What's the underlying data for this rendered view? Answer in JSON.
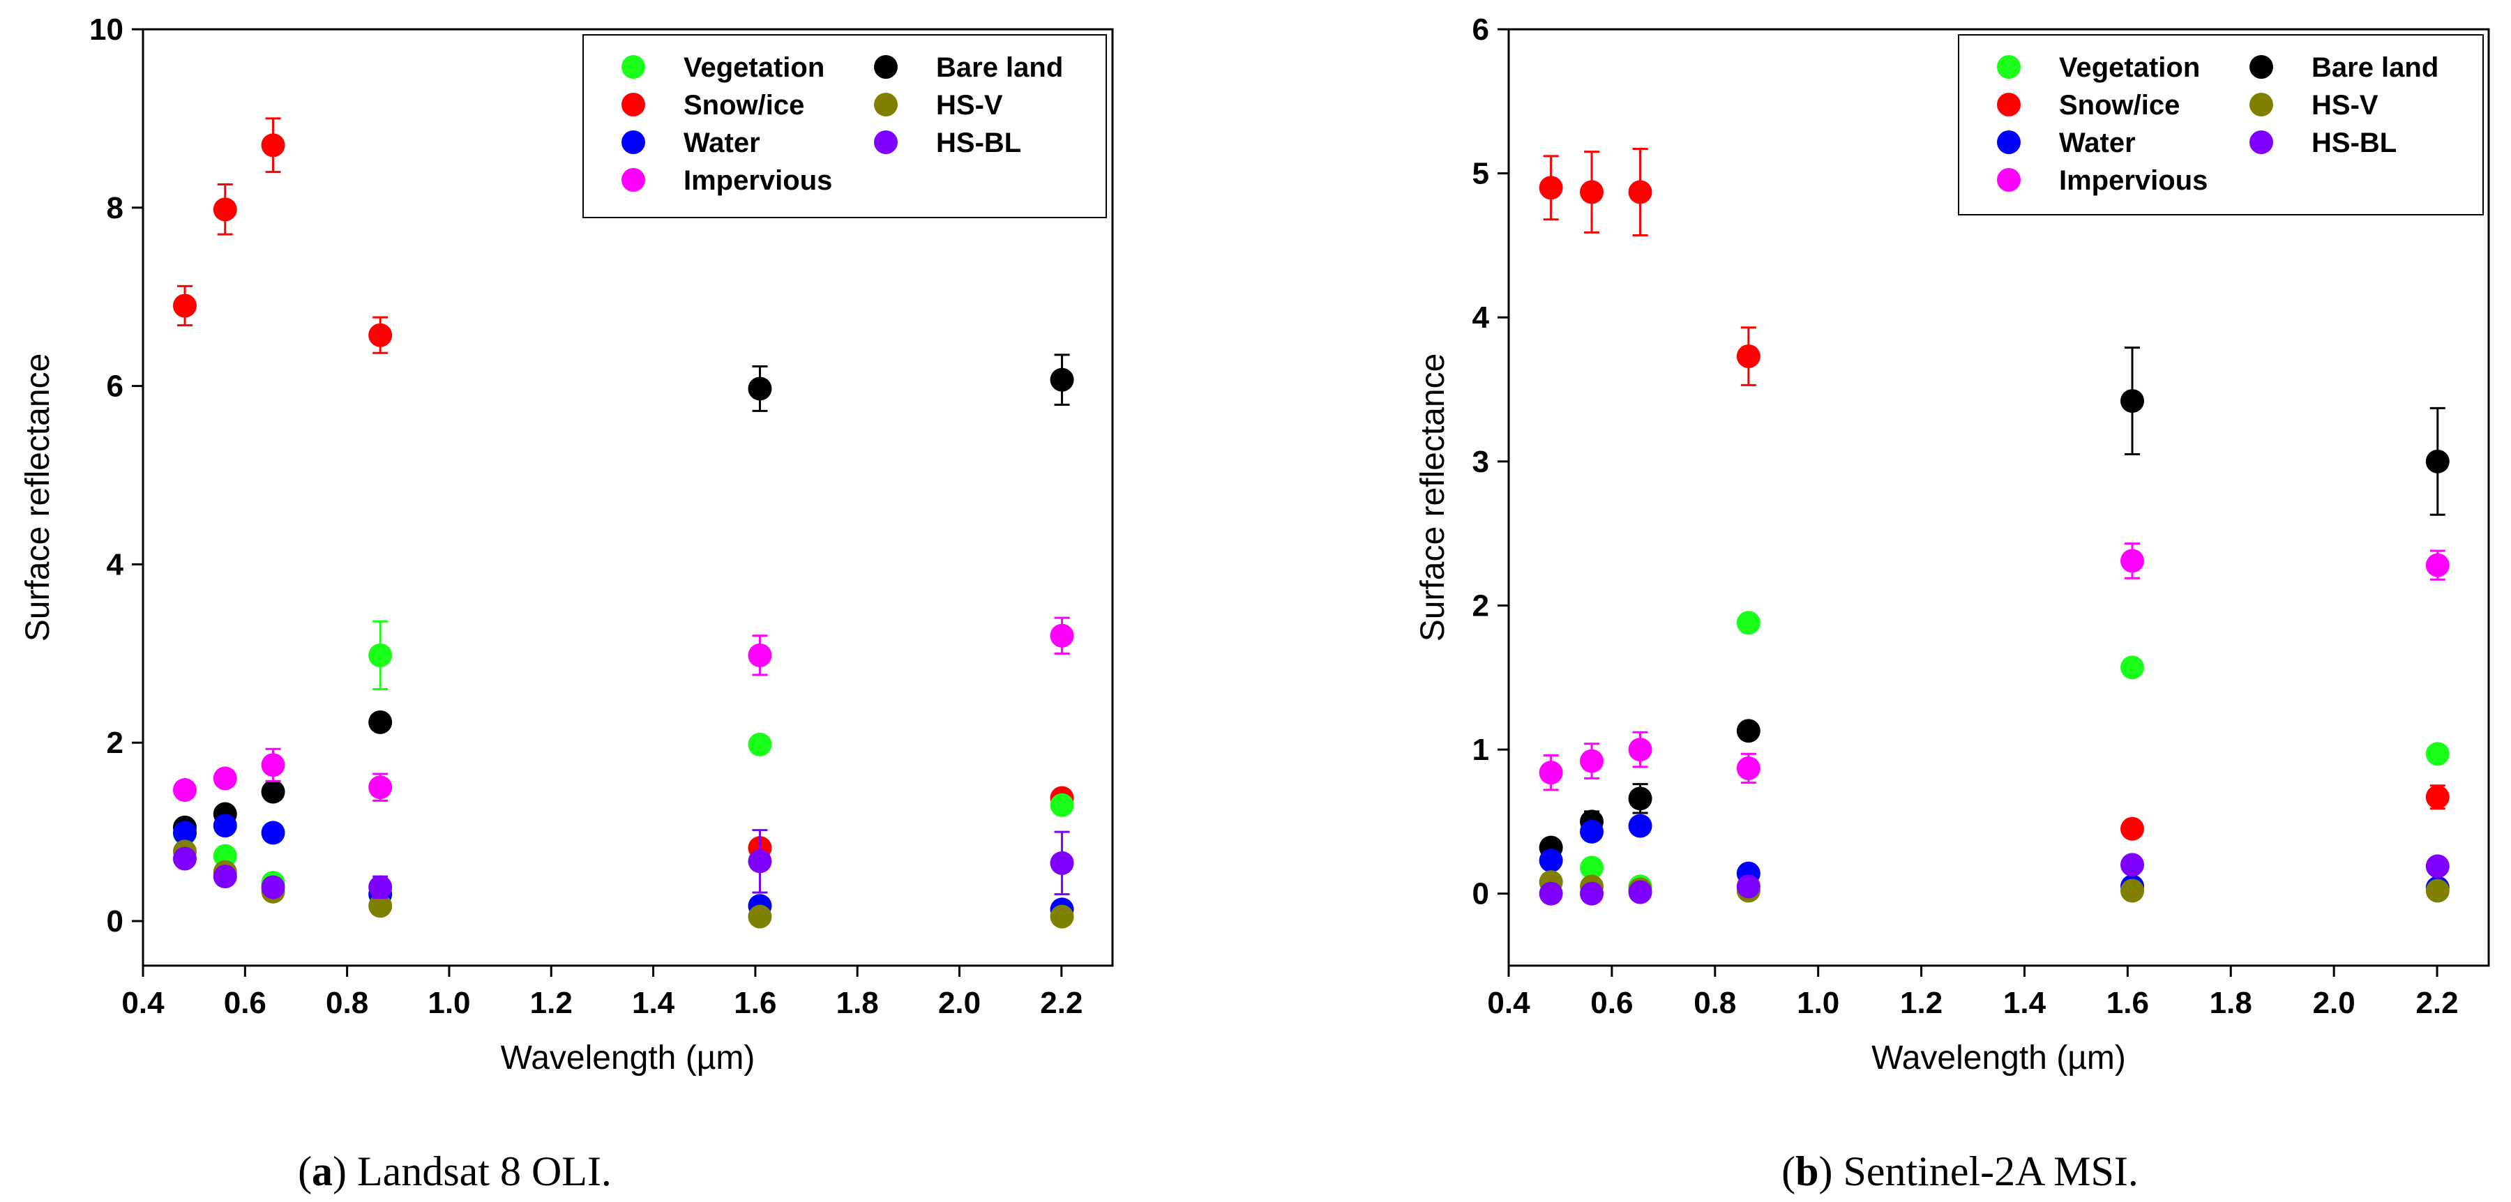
{
  "colors": {
    "Vegetation": "#1aff1a",
    "Snow/ice": "#ff0000",
    "Water": "#0000ff",
    "Impervious": "#ff00ff",
    "Bare land": "#000000",
    "HS-V": "#808000",
    "HS-BL": "#8000ff"
  },
  "chart_data": [
    {
      "type": "scatter",
      "caption_letter": "a",
      "caption_text": " Landsat 8 OLI.",
      "xlabel": "Wavelength (µm)",
      "ylabel": "Surface reflectance",
      "xlim": [
        0.4,
        2.3
      ],
      "ylim": [
        -0.5,
        10
      ],
      "xticks": [
        "0.4",
        "0.6",
        "0.8",
        "1.0",
        "1.2",
        "1.4",
        "1.6",
        "1.8",
        "2.0",
        "2.2"
      ],
      "yticks": [
        "0",
        "2",
        "4",
        "6",
        "8",
        "10"
      ],
      "legend_position": "top-right",
      "legend": [
        {
          "name": "Vegetation",
          "col": 0,
          "row": 0
        },
        {
          "name": "Snow/ice",
          "col": 0,
          "row": 1
        },
        {
          "name": "Water",
          "col": 0,
          "row": 2
        },
        {
          "name": "Impervious",
          "col": 0,
          "row": 3
        },
        {
          "name": "Bare land",
          "col": 1,
          "row": 0
        },
        {
          "name": "HS-V",
          "col": 1,
          "row": 1
        },
        {
          "name": "HS-BL",
          "col": 1,
          "row": 2
        }
      ],
      "x": [
        0.482,
        0.561,
        0.655,
        0.865,
        1.609,
        2.201
      ],
      "series": [
        {
          "name": "Snow/ice",
          "values": [
            6.9,
            7.98,
            8.7,
            6.57,
            0.82,
            1.38
          ],
          "errors": [
            0.22,
            0.28,
            0.3,
            0.2,
            0,
            0
          ]
        },
        {
          "name": "Bare land",
          "values": [
            1.05,
            1.2,
            1.45,
            2.23,
            5.97,
            6.07
          ],
          "errors": [
            0,
            0.08,
            0.05,
            0,
            0.25,
            0.28
          ]
        },
        {
          "name": "Impervious",
          "values": [
            1.47,
            1.6,
            1.75,
            1.5,
            2.98,
            3.2
          ],
          "errors": [
            0,
            0,
            0.18,
            0.15,
            0.22,
            0.2
          ]
        },
        {
          "name": "Vegetation",
          "values": [
            0.98,
            0.73,
            0.43,
            2.98,
            1.98,
            1.3
          ],
          "errors": [
            0,
            0,
            0,
            0.38,
            0,
            0
          ]
        },
        {
          "name": "Water",
          "values": [
            0.99,
            1.07,
            0.99,
            0.3,
            0.17,
            0.13
          ],
          "errors": [
            0,
            0,
            0,
            0,
            0,
            0
          ]
        },
        {
          "name": "HS-V",
          "values": [
            0.78,
            0.55,
            0.33,
            0.17,
            0.05,
            0.05
          ],
          "errors": [
            0,
            0,
            0,
            0,
            0,
            0
          ]
        },
        {
          "name": "HS-BL",
          "values": [
            0.7,
            0.5,
            0.38,
            0.38,
            0.67,
            0.65
          ],
          "errors": [
            0,
            0,
            0,
            0.12,
            0.35,
            0.35
          ]
        }
      ]
    },
    {
      "type": "scatter",
      "caption_letter": "b",
      "caption_text": " Sentinel-2A MSI.",
      "xlabel": "Wavelength (µm)",
      "ylabel": "Surface reflectance",
      "xlim": [
        0.4,
        2.3
      ],
      "ylim": [
        -0.5,
        6
      ],
      "xticks": [
        "0.4",
        "0.6",
        "0.8",
        "1.0",
        "1.2",
        "1.4",
        "1.6",
        "1.8",
        "2.0",
        "2.2"
      ],
      "yticks": [
        "0",
        "1",
        "2",
        "3",
        "4",
        "5",
        "6"
      ],
      "legend_position": "top-right",
      "legend": [
        {
          "name": "Vegetation",
          "col": 0,
          "row": 0
        },
        {
          "name": "Snow/ice",
          "col": 0,
          "row": 1
        },
        {
          "name": "Water",
          "col": 0,
          "row": 2
        },
        {
          "name": "Impervious",
          "col": 0,
          "row": 3
        },
        {
          "name": "Bare land",
          "col": 1,
          "row": 0
        },
        {
          "name": "HS-V",
          "col": 1,
          "row": 1
        },
        {
          "name": "HS-BL",
          "col": 1,
          "row": 2
        }
      ],
      "x": [
        0.482,
        0.561,
        0.655,
        0.865,
        1.609,
        2.201
      ],
      "series": [
        {
          "name": "Snow/ice",
          "values": [
            4.9,
            4.87,
            4.87,
            3.73,
            0.45,
            0.67
          ],
          "errors": [
            0.22,
            0.28,
            0.3,
            0.2,
            0,
            0.08
          ]
        },
        {
          "name": "Bare land",
          "values": [
            0.32,
            0.5,
            0.66,
            1.13,
            3.42,
            3.0
          ],
          "errors": [
            0,
            0.07,
            0.1,
            0,
            0.37,
            0.37
          ]
        },
        {
          "name": "Impervious",
          "values": [
            0.84,
            0.92,
            1.0,
            0.87,
            2.31,
            2.28
          ],
          "errors": [
            0.12,
            0.12,
            0.12,
            0.1,
            0.12,
            0.1
          ]
        },
        {
          "name": "Vegetation",
          "values": [
            0.08,
            0.18,
            0.05,
            1.88,
            1.57,
            0.97
          ],
          "errors": [
            0,
            0,
            0,
            0,
            0,
            0
          ]
        },
        {
          "name": "Water",
          "values": [
            0.23,
            0.43,
            0.47,
            0.14,
            0.05,
            0.04
          ],
          "errors": [
            0,
            0,
            0,
            0,
            0,
            0
          ]
        },
        {
          "name": "HS-V",
          "values": [
            0.08,
            0.05,
            0.03,
            0.02,
            0.02,
            0.02
          ],
          "errors": [
            0,
            0,
            0,
            0,
            0,
            0
          ]
        },
        {
          "name": "HS-BL",
          "values": [
            0.0,
            0.0,
            0.01,
            0.05,
            0.2,
            0.19
          ],
          "errors": [
            0,
            0,
            0,
            0,
            0,
            0
          ]
        }
      ]
    }
  ]
}
